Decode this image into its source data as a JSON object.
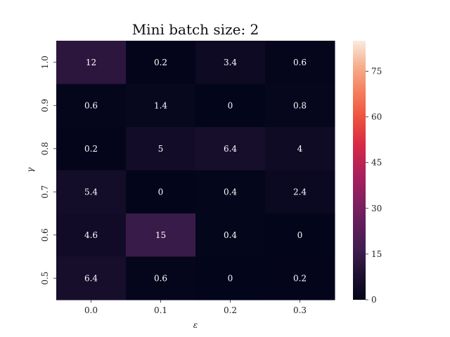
{
  "chart_data": {
    "type": "heatmap",
    "title": "Mini batch size: 2",
    "xlabel": "ε",
    "ylabel": "γ",
    "x_categories": [
      "0.0",
      "0.1",
      "0.2",
      "0.3"
    ],
    "y_categories": [
      "1.0",
      "0.9",
      "0.8",
      "0.7",
      "0.6",
      "0.5"
    ],
    "values": [
      [
        12,
        0.2,
        3.4,
        0.6
      ],
      [
        0.6,
        1.4,
        0,
        0.8
      ],
      [
        0.2,
        5,
        6.4,
        4
      ],
      [
        5.4,
        0,
        0.4,
        2.4
      ],
      [
        4.6,
        15,
        0.4,
        0
      ],
      [
        6.4,
        0.6,
        0,
        0.2
      ]
    ],
    "colorbar": {
      "min": 0,
      "max": 85,
      "ticks": [
        0,
        15,
        30,
        45,
        60,
        75
      ],
      "colormap": "rocket"
    }
  }
}
